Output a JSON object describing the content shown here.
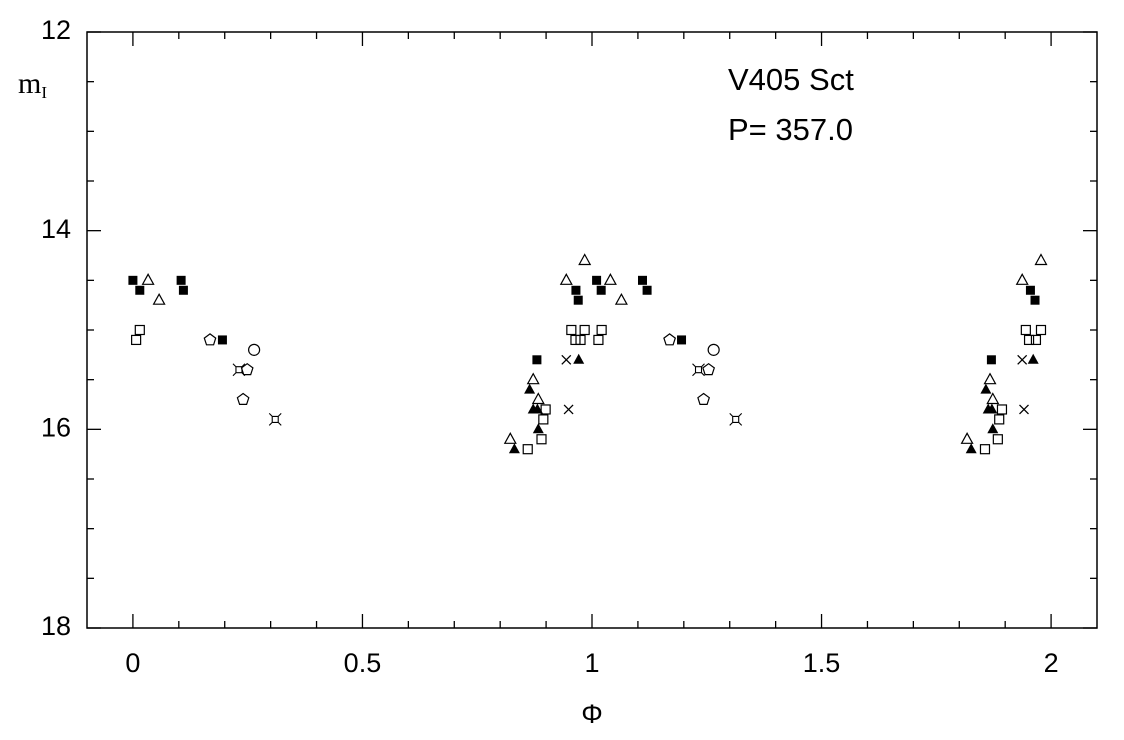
{
  "chart_data": {
    "type": "scatter",
    "annotations": [
      "V405 Sct",
      "P= 357.0"
    ],
    "xlabel": "Φ",
    "ylabel": {
      "text": "m",
      "subscript": "I"
    },
    "xlim": [
      -0.1,
      2.1
    ],
    "ylim": [
      18,
      12
    ],
    "xticks": [
      0,
      0.5,
      1,
      1.5,
      2
    ],
    "yticks": [
      12,
      14,
      16,
      18
    ],
    "xticks_minor": [
      0.1,
      0.2,
      0.3,
      0.4,
      0.6,
      0.7,
      0.8,
      0.9,
      1.1,
      1.2,
      1.3,
      1.4,
      1.6,
      1.7,
      1.8,
      1.9
    ],
    "yticks_minor": [
      12.5,
      13,
      13.5,
      14.5,
      15,
      15.5,
      16.5,
      17,
      17.5
    ],
    "color": "#000000",
    "series": [
      {
        "marker": "filled-square",
        "x": [
          0.0,
          0.015,
          0.105,
          0.11,
          0.195,
          0.88,
          0.965,
          0.97,
          1.01,
          1.02,
          1.11,
          1.12,
          1.195,
          1.87,
          1.955,
          1.965
        ],
        "values": [
          14.5,
          14.6,
          14.5,
          14.6,
          15.1,
          15.3,
          14.6,
          14.7,
          14.5,
          14.6,
          14.5,
          14.6,
          15.1,
          15.3,
          14.6,
          14.7
        ]
      },
      {
        "marker": "open-triangle",
        "x": [
          0.033,
          0.057,
          0.944,
          0.984,
          1.04,
          1.064,
          0.872,
          0.883,
          0.822,
          1.937,
          1.978,
          1.867,
          1.873,
          1.817
        ],
        "values": [
          14.5,
          14.7,
          14.5,
          14.3,
          14.5,
          14.7,
          15.5,
          15.7,
          16.1,
          14.5,
          14.3,
          15.5,
          15.7,
          16.1
        ]
      },
      {
        "marker": "open-square",
        "x": [
          0.007,
          0.015,
          0.955,
          0.964,
          0.975,
          0.984,
          1.014,
          1.021,
          0.894,
          0.899,
          0.89,
          0.86,
          1.945,
          1.952,
          1.967,
          1.978,
          1.887,
          1.893,
          1.884,
          1.856
        ],
        "values": [
          15.1,
          15.0,
          15.0,
          15.1,
          15.1,
          15.0,
          15.1,
          15.0,
          15.9,
          15.8,
          16.1,
          16.2,
          15.0,
          15.1,
          15.1,
          15.0,
          15.9,
          15.8,
          16.1,
          16.2
        ]
      },
      {
        "marker": "pentagon",
        "x": [
          0.168,
          0.24,
          0.249,
          1.169,
          1.243,
          1.254
        ],
        "values": [
          15.1,
          15.7,
          15.4,
          15.1,
          15.7,
          15.4
        ]
      },
      {
        "marker": "circle",
        "x": [
          0.264,
          1.265
        ],
        "values": [
          15.2,
          15.2
        ]
      },
      {
        "marker": "filled-triangle",
        "x": [
          0.864,
          0.872,
          0.881,
          0.883,
          0.831,
          0.971,
          1.858,
          1.863,
          1.871,
          1.873,
          1.826,
          1.961
        ],
        "values": [
          15.6,
          15.8,
          15.8,
          16.0,
          16.2,
          15.3,
          15.6,
          15.8,
          15.8,
          16.0,
          16.2,
          15.3
        ]
      },
      {
        "marker": "cross",
        "x": [
          0.944,
          0.949,
          1.937,
          1.941
        ],
        "values": [
          15.3,
          15.8,
          15.3,
          15.8
        ]
      },
      {
        "marker": "star-square",
        "x": [
          0.231,
          0.31,
          1.232,
          1.313
        ],
        "values": [
          15.4,
          15.9,
          15.4,
          15.9
        ]
      }
    ]
  }
}
